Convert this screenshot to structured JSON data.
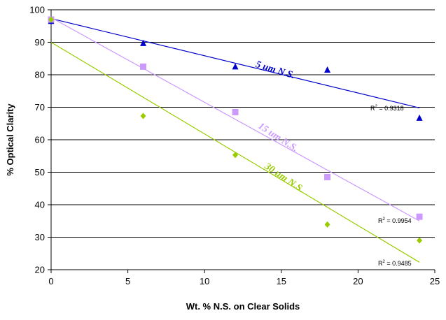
{
  "chart_data": {
    "type": "scatter",
    "title": "",
    "xlabel": "Wt. % N.S. on Clear Solids",
    "ylabel": "% Optical Clarity",
    "xlim": [
      0,
      25
    ],
    "ylim": [
      20,
      100
    ],
    "x_ticks": [
      "0",
      "5",
      "10",
      "15",
      "20",
      "25"
    ],
    "y_ticks": [
      "20",
      "30",
      "40",
      "50",
      "60",
      "70",
      "80",
      "90",
      "100"
    ],
    "grid": "horizontal major gridlines",
    "legend": "none",
    "series": [
      {
        "name": "5 um N.S.",
        "marker": "triangle",
        "color": "#0000CC",
        "points": [
          [
            0,
            96.5
          ],
          [
            6,
            89.7
          ],
          [
            12,
            82.5
          ],
          [
            18,
            81.5
          ],
          [
            24,
            66.7
          ]
        ],
        "trendline": {
          "start": [
            0,
            97.3
          ],
          "end": [
            24,
            69.8
          ],
          "color": "#0000CC"
        },
        "r2_label": "R",
        "r2_sup": "2",
        "r2_value": " = 0.9318"
      },
      {
        "name": "15 um N.S.",
        "marker": "square",
        "color": "#CC99FF",
        "points": [
          [
            0,
            97.0
          ],
          [
            6,
            82.5
          ],
          [
            12,
            68.5
          ],
          [
            18,
            48.5
          ],
          [
            24,
            36.3
          ]
        ],
        "trendline": {
          "start": [
            0,
            97.6
          ],
          "end": [
            24,
            35.0
          ],
          "color": "#CC99FF"
        },
        "r2_label": "R",
        "r2_sup": "2",
        "r2_value": " = 0.9954"
      },
      {
        "name": "30 um N.S.",
        "marker": "diamond",
        "color": "#99CC00",
        "points": [
          [
            0,
            97.0
          ],
          [
            6,
            67.3
          ],
          [
            12,
            55.3
          ],
          [
            18,
            33.9
          ],
          [
            24,
            29.0
          ]
        ],
        "trendline": {
          "start": [
            0,
            90.0
          ],
          "end": [
            24,
            22.3
          ],
          "color": "#99CC00"
        },
        "r2_label": "R",
        "r2_sup": "2",
        "r2_value": " = 0.9485"
      }
    ]
  }
}
